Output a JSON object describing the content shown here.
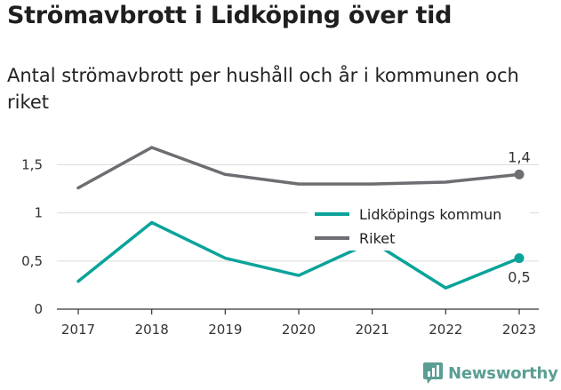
{
  "header": {
    "title": "Strömavbrott i Lidköping över tid",
    "subtitle": "Antal strömavbrott per hushåll och år i kommunen och riket"
  },
  "brand": {
    "name": "Newsworthy",
    "color": "#5a9e93",
    "icon": "bar-chart-logo-icon"
  },
  "colors": {
    "grid": "#dcdcdc",
    "axis": "#333333"
  },
  "chart_data": {
    "type": "line",
    "x": [
      "2017",
      "2018",
      "2019",
      "2020",
      "2021",
      "2022",
      "2023"
    ],
    "series": [
      {
        "name": "Lidköpings kommun",
        "color": "#0aa39a",
        "values": [
          0.29,
          0.9,
          0.53,
          0.35,
          0.7,
          0.22,
          0.53
        ],
        "end_label": "0,5"
      },
      {
        "name": "Riket",
        "color": "#6d6d72",
        "values": [
          1.26,
          1.68,
          1.4,
          1.3,
          1.3,
          1.32,
          1.4
        ],
        "end_label": "1,4"
      }
    ],
    "ylim": [
      0,
      1.8
    ],
    "yticks": [
      {
        "value": 0,
        "label": "0"
      },
      {
        "value": 0.5,
        "label": "0,5"
      },
      {
        "value": 1,
        "label": "1"
      },
      {
        "value": 1.5,
        "label": "1,5"
      }
    ],
    "grid": true,
    "legend_position": "right, inside plot"
  }
}
